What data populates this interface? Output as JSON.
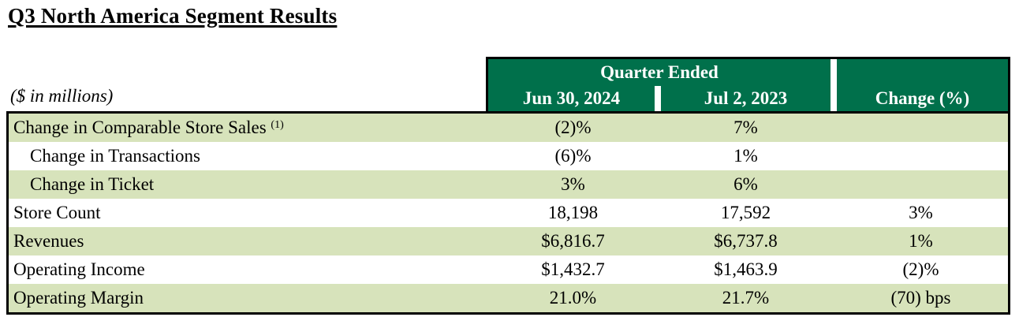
{
  "document": {
    "title": "Q3 North America Segment Results",
    "units_note": "($ in millions)"
  },
  "table": {
    "header": {
      "group_label": "Quarter Ended",
      "columns": [
        "Jun 30, 2024",
        "Jul 2, 2023",
        "Change (%)"
      ]
    },
    "rows": [
      {
        "label": "Change in Comparable Store Sales",
        "footnote": "(1)",
        "q_2024": "(2)%",
        "q_2023": "7%",
        "change": ""
      },
      {
        "label": "Change in Transactions",
        "q_2024": "(6)%",
        "q_2023": "1%",
        "change": ""
      },
      {
        "label": "Change in Ticket",
        "q_2024": "3%",
        "q_2023": "6%",
        "change": ""
      },
      {
        "label": "Store Count",
        "q_2024": "18,198",
        "q_2023": "17,592",
        "change": "3%"
      },
      {
        "label": "Revenues",
        "q_2024": "$6,816.7",
        "q_2023": "$6,737.8",
        "change": "1%"
      },
      {
        "label": "Operating Income",
        "q_2024": "$1,432.7",
        "q_2023": "$1,463.9",
        "change": "(2)%"
      },
      {
        "label": "Operating Margin",
        "q_2024": "21.0%",
        "q_2023": "21.7%",
        "change": "(70) bps"
      }
    ]
  },
  "colors": {
    "header_green": "#00704B",
    "row_green": "#D7E3BB",
    "row_white": "#FFFFFF",
    "border": "#000000",
    "header_text": "#FFFFFF",
    "body_text": "#000000"
  }
}
